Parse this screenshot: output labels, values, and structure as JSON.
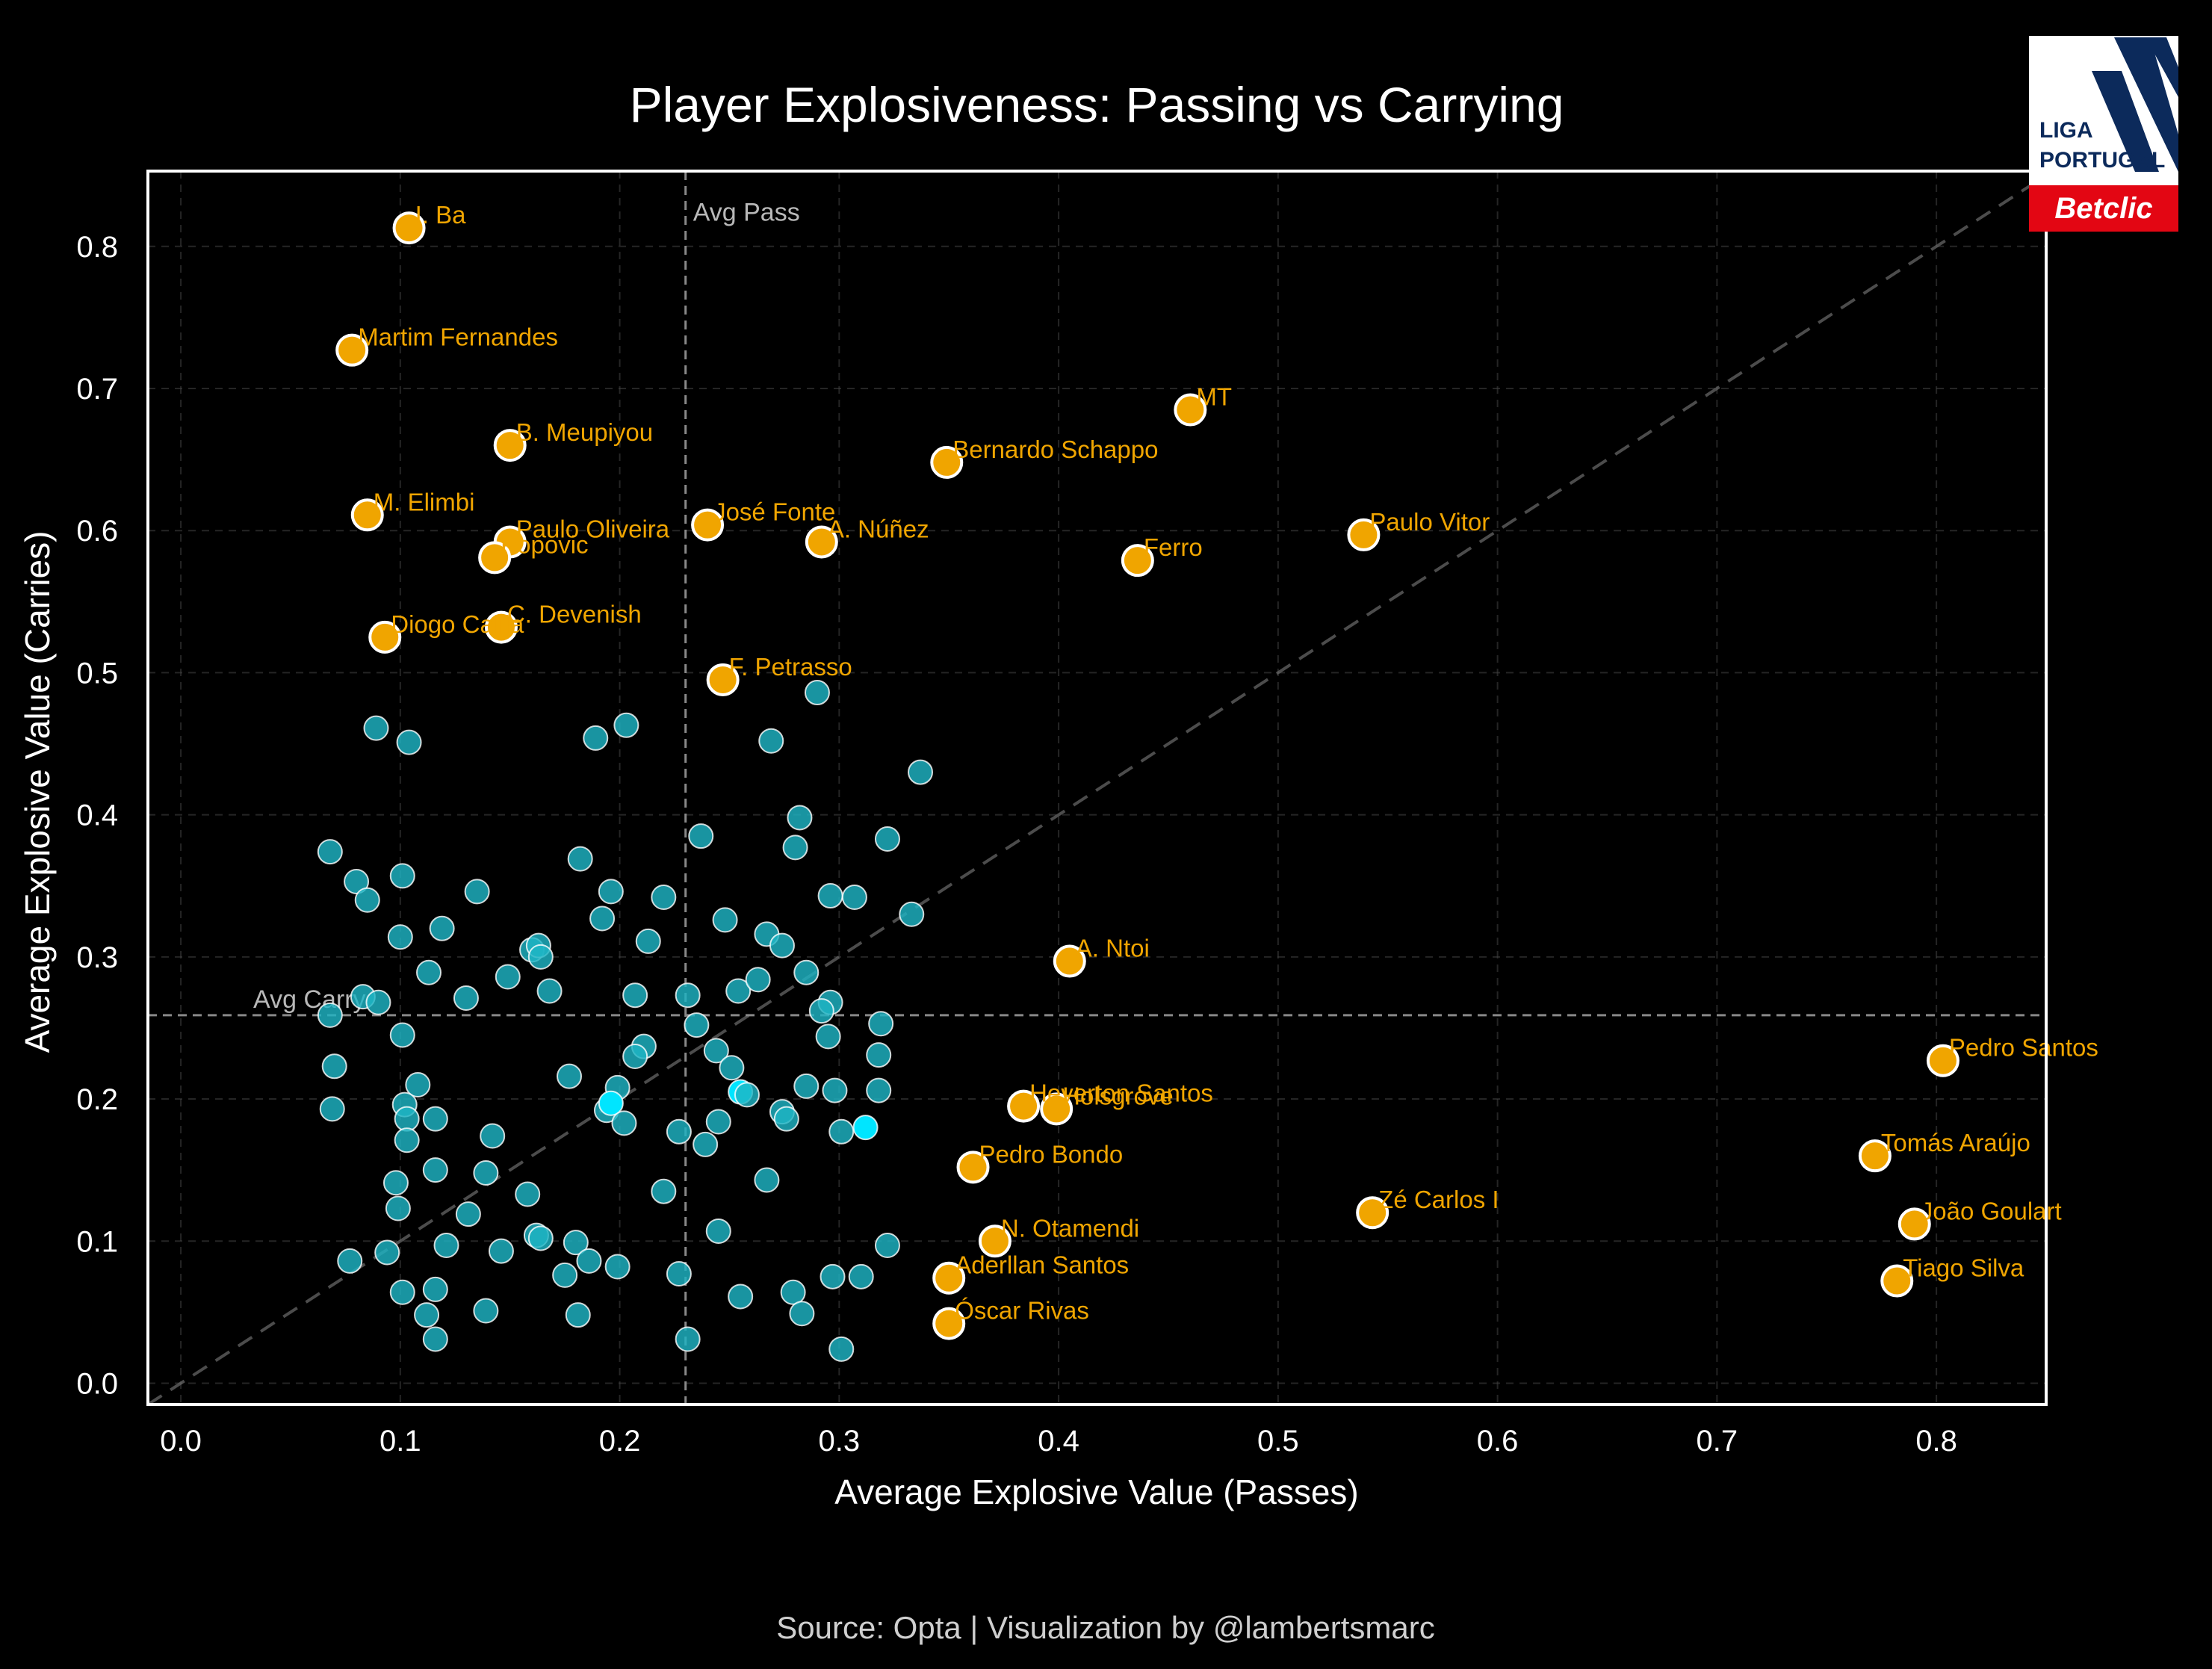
{
  "colors": {
    "background": "#000000",
    "highlight": "#f0a500",
    "highlight_text": "#f0a500",
    "regular": "#1fb5c4",
    "regular_bright": "#00e5ff",
    "grid": "#444444",
    "frame": "#ffffff",
    "logo_navy": "#0c2a5b",
    "logo_red": "#e30613"
  },
  "logo": {
    "line1": "LIGA",
    "line2": "PORTUGAL",
    "brand": "Betclic",
    "icon": "liga-portugal-logo-icon"
  },
  "footer": {
    "source": "Source: Opta | Visualization by @lambertsmarc"
  },
  "chart_data": {
    "type": "scatter",
    "title": "Player Explosiveness: Passing vs Carrying",
    "xlabel": "Average Explosive Value (Passes)",
    "ylabel": "Average Explosive Value (Carries)",
    "xlim": [
      -0.015,
      0.85
    ],
    "ylim": [
      -0.015,
      0.853
    ],
    "xticks": [
      0.0,
      0.1,
      0.2,
      0.3,
      0.4,
      0.5,
      0.6,
      0.7,
      0.8
    ],
    "yticks": [
      0.0,
      0.1,
      0.2,
      0.3,
      0.4,
      0.5,
      0.6,
      0.7,
      0.8
    ],
    "grid": true,
    "reference_lines": {
      "avg_pass": {
        "value": 0.23,
        "label": "Avg Pass"
      },
      "avg_carry": {
        "value": 0.259,
        "label": "Avg Carry"
      },
      "diagonal": "y = x"
    },
    "highlighted_players": [
      {
        "name": "I. Ba",
        "x": 0.104,
        "y": 0.813
      },
      {
        "name": "Martim Fernandes",
        "x": 0.078,
        "y": 0.727
      },
      {
        "name": "B. Meupiyou",
        "x": 0.15,
        "y": 0.66
      },
      {
        "name": "MT",
        "x": 0.46,
        "y": 0.685
      },
      {
        "name": "Bernardo Schappo",
        "x": 0.349,
        "y": 0.648
      },
      {
        "name": "M. Elimbi",
        "x": 0.085,
        "y": 0.611
      },
      {
        "name": "José Fonte",
        "x": 0.24,
        "y": 0.604
      },
      {
        "name": "Paulo Oliveira",
        "x": 0.15,
        "y": 0.592
      },
      {
        "name": "A. Núñez",
        "x": 0.292,
        "y": 0.592
      },
      {
        "name": "Paulo Vitor",
        "x": 0.539,
        "y": 0.597
      },
      {
        "name": "Popovic",
        "x": 0.143,
        "y": 0.581
      },
      {
        "name": "Ferro",
        "x": 0.436,
        "y": 0.579
      },
      {
        "name": "C. Devenish",
        "x": 0.146,
        "y": 0.532
      },
      {
        "name": "Diogo Calila",
        "x": 0.093,
        "y": 0.525
      },
      {
        "name": "F. Petrasso",
        "x": 0.247,
        "y": 0.495
      },
      {
        "name": "A. Ntoi",
        "x": 0.405,
        "y": 0.297
      },
      {
        "name": "Pedro Santos",
        "x": 0.803,
        "y": 0.227
      },
      {
        "name": "Heverton Santos",
        "x": 0.384,
        "y": 0.195
      },
      {
        "name": "Holsgrove",
        "x": 0.399,
        "y": 0.193
      },
      {
        "name": "Tomás Araújo",
        "x": 0.772,
        "y": 0.16
      },
      {
        "name": "Pedro Bondo",
        "x": 0.361,
        "y": 0.152
      },
      {
        "name": "Zé Carlos I",
        "x": 0.543,
        "y": 0.12
      },
      {
        "name": "João Goulart",
        "x": 0.79,
        "y": 0.112
      },
      {
        "name": "N. Otamendi",
        "x": 0.371,
        "y": 0.1
      },
      {
        "name": "Aderllan Santos",
        "x": 0.35,
        "y": 0.074
      },
      {
        "name": "Tiago Silva",
        "x": 0.782,
        "y": 0.072
      },
      {
        "name": "Óscar Rivas",
        "x": 0.35,
        "y": 0.042
      }
    ],
    "other_players": [
      [
        0.089,
        0.461
      ],
      [
        0.104,
        0.451
      ],
      [
        0.189,
        0.454
      ],
      [
        0.203,
        0.463
      ],
      [
        0.269,
        0.452
      ],
      [
        0.29,
        0.486
      ],
      [
        0.337,
        0.43
      ],
      [
        0.237,
        0.385
      ],
      [
        0.282,
        0.398
      ],
      [
        0.28,
        0.377
      ],
      [
        0.322,
        0.383
      ],
      [
        0.068,
        0.374
      ],
      [
        0.08,
        0.353
      ],
      [
        0.085,
        0.34
      ],
      [
        0.101,
        0.357
      ],
      [
        0.135,
        0.346
      ],
      [
        0.182,
        0.369
      ],
      [
        0.196,
        0.346
      ],
      [
        0.22,
        0.342
      ],
      [
        0.296,
        0.343
      ],
      [
        0.307,
        0.342
      ],
      [
        0.333,
        0.33
      ],
      [
        0.1,
        0.314
      ],
      [
        0.119,
        0.32
      ],
      [
        0.192,
        0.327
      ],
      [
        0.248,
        0.326
      ],
      [
        0.213,
        0.311
      ],
      [
        0.267,
        0.316
      ],
      [
        0.274,
        0.308
      ],
      [
        0.16,
        0.305
      ],
      [
        0.163,
        0.308
      ],
      [
        0.164,
        0.3
      ],
      [
        0.113,
        0.289
      ],
      [
        0.149,
        0.286
      ],
      [
        0.168,
        0.276
      ],
      [
        0.13,
        0.271
      ],
      [
        0.083,
        0.272
      ],
      [
        0.09,
        0.268
      ],
      [
        0.068,
        0.259
      ],
      [
        0.207,
        0.273
      ],
      [
        0.231,
        0.273
      ],
      [
        0.254,
        0.276
      ],
      [
        0.263,
        0.284
      ],
      [
        0.285,
        0.289
      ],
      [
        0.296,
        0.268
      ],
      [
        0.292,
        0.262
      ],
      [
        0.235,
        0.252
      ],
      [
        0.319,
        0.253
      ],
      [
        0.101,
        0.245
      ],
      [
        0.295,
        0.244
      ],
      [
        0.211,
        0.237
      ],
      [
        0.207,
        0.23
      ],
      [
        0.244,
        0.234
      ],
      [
        0.251,
        0.222
      ],
      [
        0.318,
        0.231
      ],
      [
        0.07,
        0.223
      ],
      [
        0.108,
        0.21
      ],
      [
        0.177,
        0.216
      ],
      [
        0.199,
        0.208
      ],
      [
        0.255,
        0.205
      ],
      [
        0.258,
        0.203
      ],
      [
        0.285,
        0.209
      ],
      [
        0.298,
        0.206
      ],
      [
        0.318,
        0.206
      ],
      [
        0.069,
        0.193
      ],
      [
        0.102,
        0.196
      ],
      [
        0.103,
        0.186
      ],
      [
        0.116,
        0.186
      ],
      [
        0.194,
        0.192
      ],
      [
        0.196,
        0.197
      ],
      [
        0.202,
        0.183
      ],
      [
        0.245,
        0.184
      ],
      [
        0.227,
        0.177
      ],
      [
        0.239,
        0.168
      ],
      [
        0.274,
        0.191
      ],
      [
        0.276,
        0.186
      ],
      [
        0.301,
        0.177
      ],
      [
        0.312,
        0.18
      ],
      [
        0.103,
        0.171
      ],
      [
        0.142,
        0.174
      ],
      [
        0.116,
        0.15
      ],
      [
        0.139,
        0.148
      ],
      [
        0.098,
        0.141
      ],
      [
        0.158,
        0.133
      ],
      [
        0.22,
        0.135
      ],
      [
        0.267,
        0.143
      ],
      [
        0.099,
        0.123
      ],
      [
        0.131,
        0.119
      ],
      [
        0.162,
        0.104
      ],
      [
        0.164,
        0.102
      ],
      [
        0.18,
        0.099
      ],
      [
        0.245,
        0.107
      ],
      [
        0.121,
        0.097
      ],
      [
        0.146,
        0.093
      ],
      [
        0.094,
        0.092
      ],
      [
        0.077,
        0.086
      ],
      [
        0.186,
        0.086
      ],
      [
        0.199,
        0.082
      ],
      [
        0.175,
        0.076
      ],
      [
        0.227,
        0.077
      ],
      [
        0.297,
        0.075
      ],
      [
        0.31,
        0.075
      ],
      [
        0.322,
        0.097
      ],
      [
        0.101,
        0.064
      ],
      [
        0.116,
        0.066
      ],
      [
        0.255,
        0.061
      ],
      [
        0.279,
        0.064
      ],
      [
        0.112,
        0.048
      ],
      [
        0.139,
        0.051
      ],
      [
        0.181,
        0.048
      ],
      [
        0.283,
        0.049
      ],
      [
        0.116,
        0.031
      ],
      [
        0.231,
        0.031
      ],
      [
        0.301,
        0.024
      ]
    ],
    "bright_points": [
      [
        0.312,
        0.18
      ],
      [
        0.255,
        0.205
      ],
      [
        0.196,
        0.197
      ]
    ]
  }
}
